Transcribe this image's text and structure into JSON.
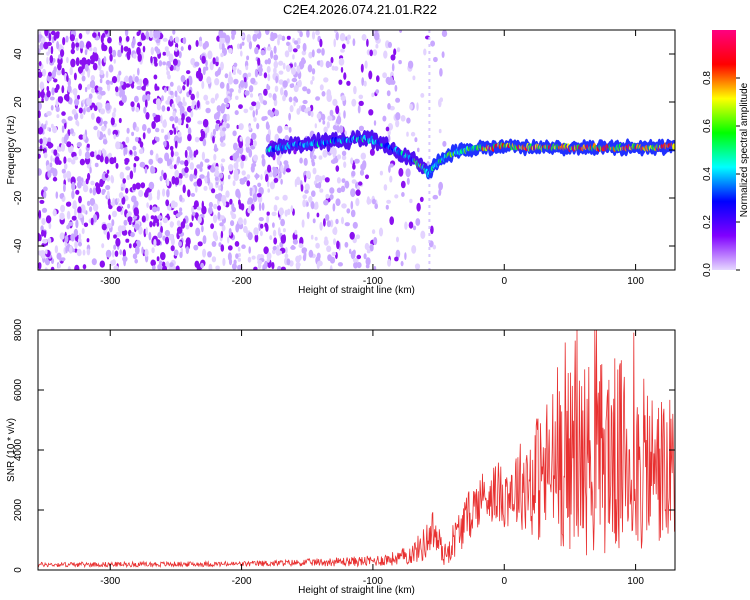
{
  "title": "C2E4.2026.074.21.01.R22",
  "chart_data": [
    {
      "type": "heatmap",
      "title": "C2E4.2026.074.21.01.R22",
      "xlabel": "Height of straight line (km)",
      "ylabel": "Frequency (Hz)",
      "xlim": [
        -355,
        130
      ],
      "ylim": [
        -50,
        50
      ],
      "xticks": [
        -300,
        -200,
        -100,
        0,
        100
      ],
      "yticks": [
        -40,
        -20,
        0,
        20,
        40
      ],
      "colorbar": {
        "label": "Normalized spectral amplitude",
        "range": [
          0.0,
          1.0
        ],
        "ticks": [
          0.0,
          0.2,
          0.4,
          0.6,
          0.8
        ],
        "colormap": [
          "#e6d8ff",
          "#8000ff",
          "#0000ff",
          "#00ffff",
          "#00ff00",
          "#ffff00",
          "#ff0000",
          "#ff0080"
        ]
      },
      "trace": {
        "description": "Frequency of dominant spectral peak vs height",
        "x": [
          -180,
          -160,
          -140,
          -120,
          -110,
          -100,
          -90,
          -80,
          -70,
          -62,
          -58,
          -52,
          -45,
          -38,
          -30,
          -20,
          -10,
          0,
          20,
          40,
          60,
          80,
          100,
          120,
          130
        ],
        "y": [
          0,
          2,
          3,
          4,
          5,
          4,
          2,
          -1,
          -4,
          -7,
          -10,
          -6,
          -3,
          -1,
          0,
          1,
          1,
          2,
          1,
          1,
          1,
          1,
          1,
          1,
          2
        ]
      },
      "noise_region": [
        -355,
        -75
      ]
    },
    {
      "type": "line",
      "xlabel": "Height of straight line (km)",
      "ylabel": "SNR (10 * v/v)",
      "xlim": [
        -355,
        130
      ],
      "ylim": [
        0,
        8000
      ],
      "xticks": [
        -300,
        -200,
        -100,
        0,
        100
      ],
      "yticks": [
        0,
        2000,
        4000,
        6000,
        8000
      ],
      "series": [
        {
          "name": "SNR",
          "color": "#e83030",
          "envelope_x": [
            -355,
            -200,
            -150,
            -100,
            -80,
            -70,
            -60,
            -55,
            -50,
            -45,
            -40,
            -30,
            -20,
            -10,
            0,
            10,
            20,
            30,
            40,
            50,
            60,
            70,
            80,
            90,
            100,
            110,
            120,
            130
          ],
          "envelope_mean": [
            180,
            200,
            250,
            300,
            400,
            550,
            900,
            1400,
            900,
            500,
            900,
            1600,
            2300,
            2600,
            2500,
            2800,
            3000,
            3200,
            3600,
            3700,
            3800,
            3700,
            3900,
            3700,
            3500,
            3400,
            3300,
            3000
          ],
          "envelope_spread": [
            80,
            90,
            120,
            180,
            250,
            350,
            600,
            700,
            600,
            400,
            600,
            800,
            900,
            1000,
            1100,
            1400,
            1800,
            2200,
            2600,
            2800,
            3000,
            3000,
            3100,
            3000,
            2800,
            2600,
            2400,
            2300
          ]
        }
      ]
    }
  ]
}
